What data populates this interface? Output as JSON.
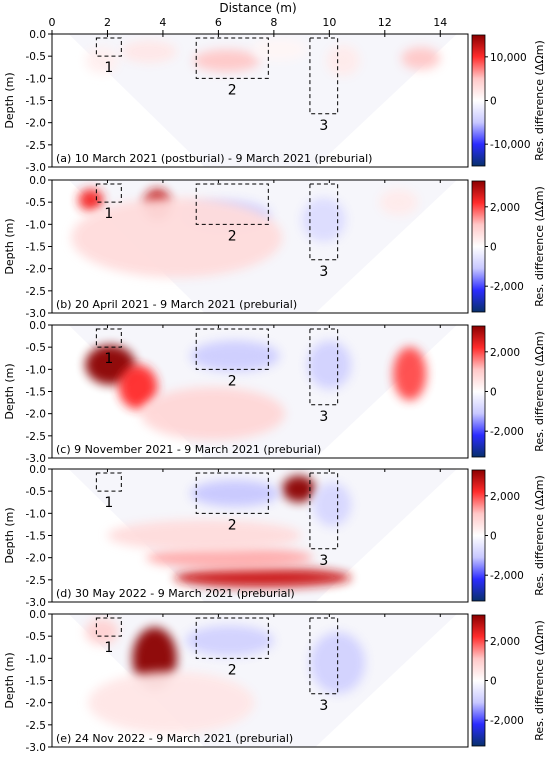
{
  "chart_data": {
    "type": "heatmap",
    "xlabel": "Distance (m)",
    "x_ticks": [
      0,
      2,
      4,
      6,
      8,
      10,
      12,
      14
    ],
    "xlim": [
      0,
      15
    ],
    "ylabel": "Depth (m)",
    "y_ticks": [
      0.0,
      -0.5,
      -1.0,
      -1.5,
      -2.0,
      -2.5,
      -3.0
    ],
    "y_tick_labels": [
      "0.0",
      "-0.5",
      "-1.0",
      "-1.5",
      "-2.0",
      "-2.5",
      "-3.0"
    ],
    "ylim": [
      -3.0,
      0.0
    ],
    "colorbar_label": "Res. difference (ΔΩm)",
    "colormap": [
      "#08306b",
      "#2c2cff",
      "#c8c8ff",
      "#ffffff",
      "#ffc8c8",
      "#ff2c2c",
      "#8b0000"
    ],
    "grave_boxes": [
      {
        "label": "1",
        "x": [
          1.6,
          2.5
        ],
        "depth": [
          0.0,
          -0.5
        ]
      },
      {
        "label": "2",
        "x": [
          5.2,
          7.8
        ],
        "depth": [
          0.0,
          -1.0
        ]
      },
      {
        "label": "3",
        "x": [
          9.3,
          10.3
        ],
        "depth": [
          0.0,
          -1.8
        ]
      }
    ],
    "panels": [
      {
        "title": "(a) 10 March 2021 (postburial) - 9 March 2021 (preburial)",
        "clim": [
          -15000,
          15000
        ],
        "cbar_ticks": [
          10000,
          0,
          -10000
        ],
        "cbar_tick_labels": [
          "10,000",
          "0",
          "-10,000"
        ],
        "anomalies": [
          {
            "x": 6.3,
            "depth": -0.6,
            "rx": 1.2,
            "ry": 0.25,
            "value": 5000
          },
          {
            "x": 13.3,
            "depth": -0.55,
            "rx": 0.7,
            "ry": 0.25,
            "value": 5000
          },
          {
            "x": 3.5,
            "depth": -0.4,
            "rx": 1.0,
            "ry": 0.25,
            "value": 2200
          },
          {
            "x": 10.5,
            "depth": -0.6,
            "rx": 0.6,
            "ry": 0.35,
            "value": 1800
          },
          {
            "x": 1.8,
            "depth": -0.6,
            "rx": 0.6,
            "ry": 0.3,
            "value": 1500
          },
          {
            "x": 8.2,
            "depth": -0.35,
            "rx": 1.0,
            "ry": 0.25,
            "value": 800
          }
        ]
      },
      {
        "title": "(b) 20 April 2021 - 9 March 2021 (preburial)",
        "clim": [
          -3300,
          3300
        ],
        "cbar_ticks": [
          2000,
          0,
          -2000
        ],
        "cbar_tick_labels": [
          "2,000",
          "0",
          "-2,000"
        ],
        "anomalies": [
          {
            "x": 3.8,
            "depth": -0.55,
            "rx": 0.5,
            "ry": 0.35,
            "value": 2800
          },
          {
            "x": 1.4,
            "depth": -0.45,
            "rx": 0.45,
            "ry": 0.25,
            "value": 2300
          },
          {
            "x": 6.3,
            "depth": -0.8,
            "rx": 1.6,
            "ry": 0.35,
            "value": -900
          },
          {
            "x": 9.8,
            "depth": -0.9,
            "rx": 0.8,
            "ry": 0.5,
            "value": -700
          },
          {
            "x": 4.5,
            "depth": -1.3,
            "rx": 3.8,
            "ry": 0.9,
            "value": 700
          },
          {
            "x": 12.5,
            "depth": -0.5,
            "rx": 0.7,
            "ry": 0.3,
            "value": 400
          }
        ]
      },
      {
        "title": "(c) 9 November 2021 - 9 March 2021 (preburial)",
        "clim": [
          -3300,
          3300
        ],
        "cbar_ticks": [
          2000,
          0,
          -2000
        ],
        "cbar_tick_labels": [
          "2,000",
          "0",
          "-2,000"
        ],
        "anomalies": [
          {
            "x": 2.1,
            "depth": -0.9,
            "rx": 0.9,
            "ry": 0.45,
            "value": 3400
          },
          {
            "x": 3.1,
            "depth": -1.4,
            "rx": 0.7,
            "ry": 0.5,
            "value": 2200
          },
          {
            "x": 12.9,
            "depth": -1.1,
            "rx": 0.6,
            "ry": 0.6,
            "value": 2000
          },
          {
            "x": 6.6,
            "depth": -0.7,
            "rx": 1.6,
            "ry": 0.35,
            "value": -1000
          },
          {
            "x": 10.0,
            "depth": -0.9,
            "rx": 0.8,
            "ry": 0.55,
            "value": -900
          },
          {
            "x": 5.8,
            "depth": -2.0,
            "rx": 2.6,
            "ry": 0.6,
            "value": 800
          }
        ]
      },
      {
        "title": "(d) 30 May 2022 - 9 March 2021 (preburial)",
        "clim": [
          -3300,
          3300
        ],
        "cbar_ticks": [
          2000,
          0,
          -2000
        ],
        "cbar_tick_labels": [
          "2,000",
          "0",
          "-2,000"
        ],
        "anomalies": [
          {
            "x": 8.9,
            "depth": -0.45,
            "rx": 0.6,
            "ry": 0.3,
            "value": 3500
          },
          {
            "x": 7.6,
            "depth": -2.45,
            "rx": 3.2,
            "ry": 0.22,
            "value": 2700
          },
          {
            "x": 6.4,
            "depth": -2.0,
            "rx": 3.0,
            "ry": 0.25,
            "value": 1300
          },
          {
            "x": 5.5,
            "depth": -1.5,
            "rx": 3.5,
            "ry": 0.35,
            "value": 700
          },
          {
            "x": 6.6,
            "depth": -0.55,
            "rx": 1.6,
            "ry": 0.3,
            "value": -1100
          },
          {
            "x": 10.1,
            "depth": -0.8,
            "rx": 0.7,
            "ry": 0.5,
            "value": -800
          }
        ]
      },
      {
        "title": "(e) 24 Nov 2022 - 9 March 2021 (preburial)",
        "clim": [
          -3300,
          3300
        ],
        "cbar_ticks": [
          2000,
          0,
          -2000
        ],
        "cbar_tick_labels": [
          "2,000",
          "0",
          "-2,000"
        ],
        "anomalies": [
          {
            "x": 3.7,
            "depth": -1.0,
            "rx": 0.8,
            "ry": 0.7,
            "value": 3600
          },
          {
            "x": 1.8,
            "depth": -0.4,
            "rx": 0.6,
            "ry": 0.3,
            "value": 900
          },
          {
            "x": 6.4,
            "depth": -0.6,
            "rx": 1.6,
            "ry": 0.35,
            "value": -900
          },
          {
            "x": 10.3,
            "depth": -1.1,
            "rx": 1.0,
            "ry": 0.7,
            "value": -900
          },
          {
            "x": 4.3,
            "depth": -2.0,
            "rx": 3.0,
            "ry": 0.7,
            "value": 500
          }
        ]
      }
    ]
  }
}
